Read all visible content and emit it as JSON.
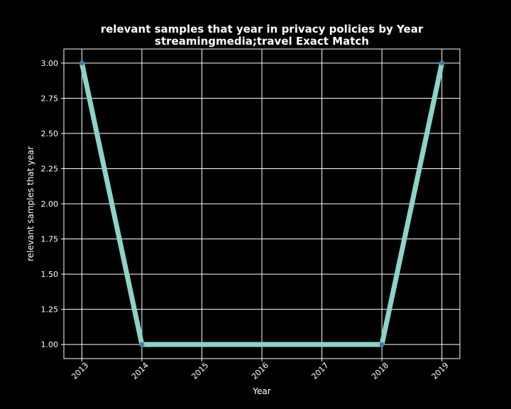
{
  "chart_data": {
    "type": "line",
    "title": "relevant samples that year in privacy policies by Year",
    "subtitle": "streamingmedia;travel Exact Match",
    "xlabel": "Year",
    "ylabel": "relevant samples that year",
    "x": [
      2013,
      2014,
      2018,
      2019
    ],
    "values": [
      3.0,
      1.0,
      1.0,
      3.0
    ],
    "x_ticks": [
      "2013",
      "2014",
      "2015",
      "2016",
      "2017",
      "2018",
      "2019"
    ],
    "y_ticks": [
      "1.00",
      "1.25",
      "1.50",
      "1.75",
      "2.00",
      "2.25",
      "2.50",
      "2.75",
      "3.00"
    ],
    "xlim": [
      2012.7,
      2019.3
    ],
    "ylim": [
      0.9,
      3.1
    ],
    "grid": true,
    "colors": {
      "background": "#000000",
      "grid": "#ffffff",
      "line": "#8dd3c7",
      "marker": "#4a78a8",
      "text": "#ffffff"
    }
  }
}
